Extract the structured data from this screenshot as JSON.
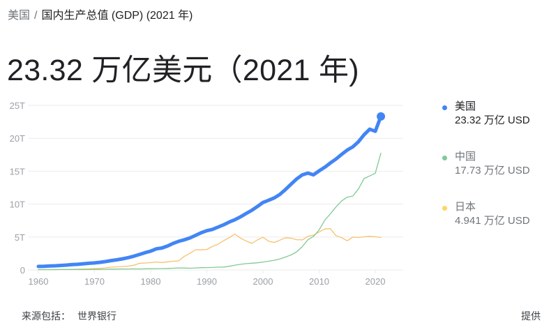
{
  "breadcrumb": {
    "root": "美国",
    "separator": "/",
    "current": "国内生产总值 (GDP) (2021 年)"
  },
  "headline": "23.32 万亿美元（2021 年)",
  "legend": [
    {
      "name": "美国",
      "value": "23.32 万亿 USD",
      "color": "#4285f4",
      "state": "active"
    },
    {
      "name": "中国",
      "value": "17.73 万亿 USD",
      "color": "#81c995",
      "state": "muted"
    },
    {
      "name": "日本",
      "value": "4.941 万亿 USD",
      "color": "#fdd663",
      "state": "muted"
    }
  ],
  "footer": {
    "source_label": "来源包括：",
    "source_link": "世界银行",
    "provided": "提供"
  },
  "colors": {
    "grid": "#ebebeb",
    "axis_text": "#9aa0a6",
    "us": "#4285f4",
    "china": "#81c995",
    "japan": "#f6c26b"
  },
  "chart_data": {
    "type": "line",
    "title": "国内生产总值 (GDP)",
    "xlabel": "",
    "ylabel": "",
    "y_ticks": [
      0,
      5,
      10,
      15,
      20,
      25
    ],
    "y_tick_labels": [
      "0",
      "5T",
      "10T",
      "15T",
      "20T",
      "25T"
    ],
    "x_ticks": [
      1960,
      1970,
      1980,
      1990,
      2000,
      2010,
      2020
    ],
    "ylim": [
      0,
      25
    ],
    "xlim": [
      1960,
      2021
    ],
    "grid": true,
    "legend_position": "right",
    "unit": "trillion USD",
    "x": [
      1960,
      1961,
      1962,
      1963,
      1964,
      1965,
      1966,
      1967,
      1968,
      1969,
      1970,
      1971,
      1972,
      1973,
      1974,
      1975,
      1976,
      1977,
      1978,
      1979,
      1980,
      1981,
      1982,
      1983,
      1984,
      1985,
      1986,
      1987,
      1988,
      1989,
      1990,
      1991,
      1992,
      1993,
      1994,
      1995,
      1996,
      1997,
      1998,
      1999,
      2000,
      2001,
      2002,
      2003,
      2004,
      2005,
      2006,
      2007,
      2008,
      2009,
      2010,
      2011,
      2012,
      2013,
      2014,
      2015,
      2016,
      2017,
      2018,
      2019,
      2020,
      2021
    ],
    "series": [
      {
        "name": "美国",
        "highlight": true,
        "values": [
          0.54,
          0.56,
          0.6,
          0.64,
          0.69,
          0.74,
          0.82,
          0.86,
          0.94,
          1.02,
          1.07,
          1.16,
          1.28,
          1.43,
          1.55,
          1.69,
          1.88,
          2.09,
          2.36,
          2.63,
          2.86,
          3.21,
          3.34,
          3.64,
          4.04,
          4.35,
          4.59,
          4.87,
          5.25,
          5.66,
          5.96,
          6.16,
          6.52,
          6.86,
          7.29,
          7.64,
          8.07,
          8.58,
          9.06,
          9.63,
          10.25,
          10.58,
          10.94,
          11.46,
          12.21,
          13.04,
          13.82,
          14.45,
          14.71,
          14.45,
          15.05,
          15.6,
          16.25,
          16.84,
          17.55,
          18.21,
          18.7,
          19.48,
          20.53,
          21.38,
          21.06,
          23.32
        ]
      },
      {
        "name": "中国",
        "values": [
          0.06,
          0.05,
          0.05,
          0.05,
          0.06,
          0.07,
          0.08,
          0.07,
          0.07,
          0.08,
          0.09,
          0.1,
          0.11,
          0.14,
          0.14,
          0.16,
          0.15,
          0.17,
          0.15,
          0.18,
          0.19,
          0.2,
          0.21,
          0.23,
          0.26,
          0.31,
          0.3,
          0.27,
          0.31,
          0.35,
          0.36,
          0.38,
          0.43,
          0.44,
          0.56,
          0.73,
          0.86,
          0.96,
          1.03,
          1.09,
          1.21,
          1.34,
          1.47,
          1.66,
          1.96,
          2.29,
          2.75,
          3.55,
          4.59,
          5.1,
          6.09,
          7.55,
          8.53,
          9.57,
          10.48,
          11.06,
          11.23,
          12.31,
          13.89,
          14.28,
          14.69,
          17.73
        ]
      },
      {
        "name": "日本",
        "values": [
          0.04,
          0.05,
          0.06,
          0.07,
          0.08,
          0.09,
          0.1,
          0.12,
          0.15,
          0.17,
          0.21,
          0.24,
          0.32,
          0.43,
          0.48,
          0.52,
          0.58,
          0.72,
          1.01,
          1.06,
          1.11,
          1.22,
          1.13,
          1.24,
          1.32,
          1.4,
          2.08,
          2.53,
          3.07,
          3.05,
          3.13,
          3.58,
          3.91,
          4.45,
          4.91,
          5.45,
          4.83,
          4.41,
          4.03,
          4.56,
          4.97,
          4.37,
          4.18,
          4.52,
          4.89,
          4.83,
          4.6,
          4.58,
          5.11,
          5.29,
          5.76,
          6.23,
          6.27,
          5.21,
          4.9,
          4.44,
          5.0,
          4.93,
          5.04,
          5.12,
          5.04,
          4.94
        ]
      }
    ]
  }
}
